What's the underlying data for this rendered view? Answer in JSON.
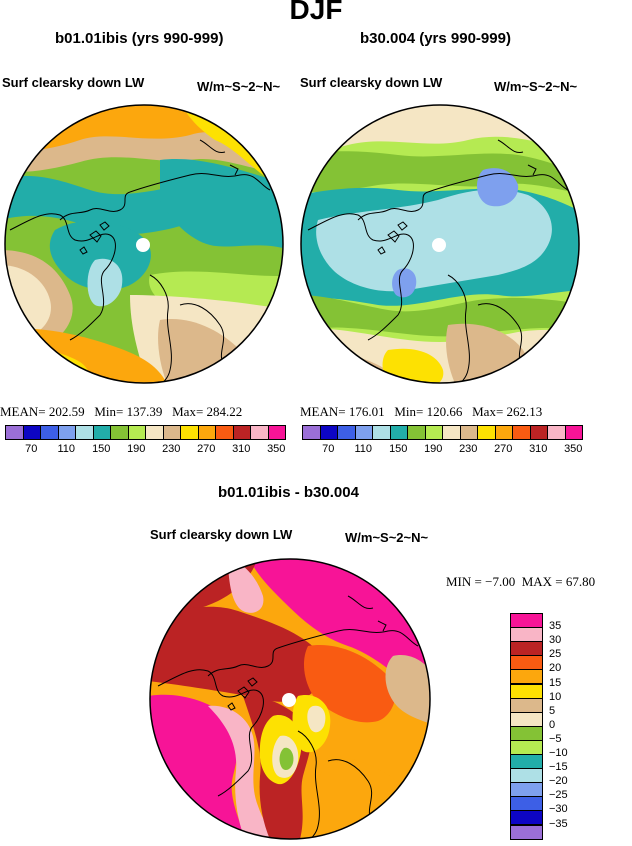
{
  "page_title": "DJF",
  "panels": [
    {
      "case_title": "b01.01ibis (yrs 990-999)",
      "variable": "Surf clearsky down LW",
      "units": "W/m~S~2~N~",
      "stats": {
        "mean": "202.59",
        "min": "137.39",
        "max": "284.22"
      },
      "stat_labels": {
        "mean": "MEAN=",
        "min": "Min=",
        "max": "Max="
      }
    },
    {
      "case_title": "b30.004 (yrs 990-999)",
      "variable": "Surf clearsky down LW",
      "units": "W/m~S~2~N~",
      "stats": {
        "mean": "176.01",
        "min": "120.66",
        "max": "262.13"
      },
      "stat_labels": {
        "mean": "MEAN=",
        "min": "Min=",
        "max": "Max="
      }
    }
  ],
  "diff_panel": {
    "case_title": "b01.01ibis - b30.004",
    "variable": "Surf clearsky down LW",
    "units": "W/m~S~2~N~",
    "min_label": "MIN =",
    "min_value": "−7.00",
    "max_label": "MAX =",
    "max_value": "67.80"
  },
  "abs_colorbar": {
    "colors": [
      "#9b6fd7",
      "#0d05c4",
      "#3d5fe6",
      "#7ea0ee",
      "#aee0e6",
      "#22ada9",
      "#84c235",
      "#b5ea52",
      "#f5e6c4",
      "#dcb88b",
      "#fde102",
      "#fca70d",
      "#f95b12",
      "#bb2324",
      "#f9b5c6",
      "#f71497"
    ],
    "labels": [
      "70",
      "110",
      "150",
      "190",
      "230",
      "270",
      "310",
      "350"
    ]
  },
  "diff_colorbar": {
    "colors": [
      "#f71497",
      "#f9b5c6",
      "#bb2324",
      "#f95b12",
      "#fca70d",
      "#fde102",
      "#dcb88b",
      "#f5e6c4",
      "#84c235",
      "#b5ea52",
      "#22ada9",
      "#aee0e6",
      "#7ea0ee",
      "#3d5fe6",
      "#0d05c4",
      "#9b6fd7"
    ],
    "labels": [
      "35",
      "30",
      "25",
      "20",
      "15",
      "10",
      "5",
      "0",
      "−5",
      "−10",
      "−15",
      "−20",
      "−25",
      "−30",
      "−35"
    ]
  },
  "map_colors": {
    "pole_marker": "#ffffff",
    "coastline": "#000000"
  }
}
